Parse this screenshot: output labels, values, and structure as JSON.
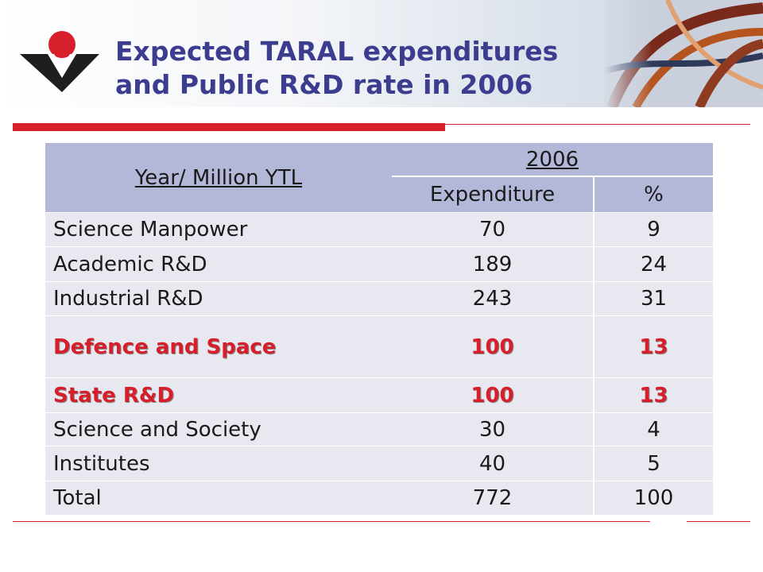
{
  "slide": {
    "title_line1": "Expected TARAL expenditures",
    "title_line2": "and Public R&D rate in 2006"
  },
  "colors": {
    "title": "#3d3d8f",
    "accent_red": "#d61f2a",
    "header_fill": "#b3b8d8",
    "row_fill": "#e8e9f0"
  },
  "table": {
    "row_header": "Year/ Million YTL",
    "year": "2006",
    "col_expenditure": "Expenditure",
    "col_percent": "%",
    "rows": [
      {
        "label": "Science Manpower",
        "expenditure": "70",
        "percent": "9"
      },
      {
        "label": "Academic R&D",
        "expenditure": "189",
        "percent": "24"
      },
      {
        "label": "Industrial R&D",
        "expenditure": "243",
        "percent": "31"
      },
      {
        "label": "Defence and Space",
        "expenditure": "100",
        "percent": "13"
      },
      {
        "label": "State R&D",
        "expenditure": "100",
        "percent": "13"
      },
      {
        "label": "Science and Society",
        "expenditure": "30",
        "percent": "4"
      },
      {
        "label": "Institutes",
        "expenditure": "40",
        "percent": "5"
      },
      {
        "label": "Total",
        "expenditure": "772",
        "percent": "100"
      }
    ]
  }
}
